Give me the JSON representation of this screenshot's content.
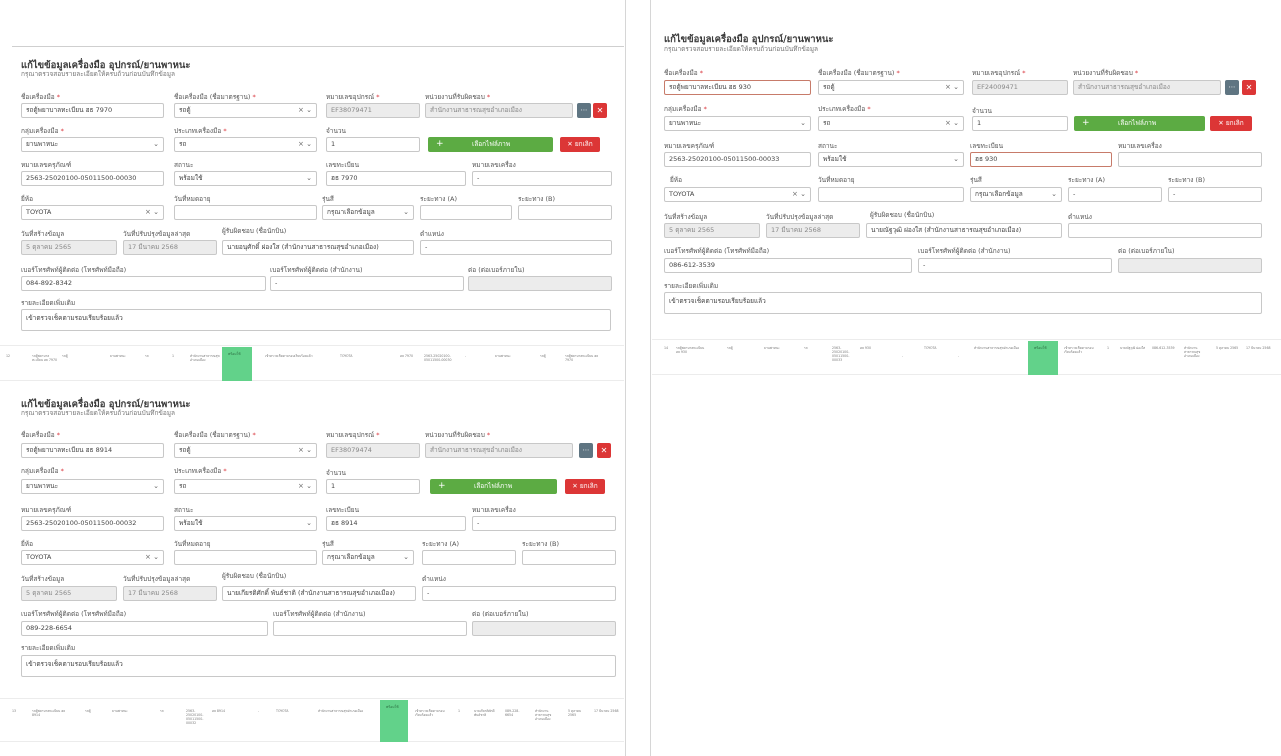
{
  "labels": {
    "title": "แก้ไขข้อมูลเครื่องมือ อุปกรณ์/ยานพาหนะ",
    "subtitle": "กรุณาตรวจสอบรายละเอียดให้ครบถ้วนก่อนบันทึกข้อมูล",
    "name": "ชื่อเครื่องมือ",
    "std_name": "ชื่อเครื่องมือ (ชื่อมาตรฐาน)",
    "equip_no": "หมายเลขอุปกรณ์",
    "owner": "หน่วยงานที่รับผิดชอบ",
    "group": "กลุ่มเครื่องมือ",
    "type": "ประเภทเครื่องมือ",
    "qty": "จำนวน",
    "add_btn": "เลือกไฟล์ภาพ",
    "cancel_btn": "ยกเลิก",
    "asset_no": "หมายเลขครุภัณฑ์",
    "status": "สถานะ",
    "plate": "เลขทะเบียน",
    "engine": "หมายเลขเครื่อง",
    "brand": "ยี่ห้อ",
    "expire": "วันที่หมดอายุ",
    "model": "รุ่นสี",
    "mile_a": "ระยะทาง (A)",
    "mile_b": "ระยะทาง (B)",
    "created": "วันที่สร้างข้อมูล",
    "updated": "วันที่ปรับปรุงข้อมูลล่าสุด",
    "responsible": "ผู้รับผิดชอบ (ชื่อนักบิน)",
    "position": "ตำแหน่ง",
    "mobile": "เบอร์โทรศัพท์ผู้ติดต่อ (โทรศัพท์มือถือ)",
    "office_phone": "เบอร์โทรศัพท์ผู้ติดต่อ (สำนักงาน)",
    "ext": "ต่อ (ต่อเบอร์ภายใน)",
    "detail": "รายละเอียดเพิ่มเติม"
  },
  "forms": [
    {
      "name": "รถตู้พยาบาลทะเบียน ฮธ 7970",
      "std_name": "รถตู้",
      "equip_no": "EF38079471",
      "owner": "สำนักงานสาธารณสุขอำเภอเมือง",
      "group": "ยานพาหนะ",
      "type": "รถ",
      "qty": "1",
      "asset_no": "2563-25020100-05011500-00030",
      "status": "พร้อมใช้",
      "plate": "ฮธ 7970",
      "engine": "-",
      "brand": "TOYOTA",
      "expire": "",
      "model": "กรุณาเลือกข้อมูล",
      "mile_a": "",
      "mile_b": "",
      "created": "5 ตุลาคม 2565",
      "updated": "17 มีนาคม 2568",
      "responsible": "นายอนุศักดิ์ ผ่องใส (สำนักงานสาธารณสุขอำเภอเมือง)",
      "position": "-",
      "mobile": "084-892-8342",
      "office_phone": "-",
      "ext": "",
      "detail": "เข้าตรวจเช็คตามรอบเรียบร้อยแล้ว"
    },
    {
      "name": "รถตู้พยาบาลทะเบียน ฮธ 8914",
      "std_name": "รถตู้",
      "equip_no": "EF38079474",
      "owner": "สำนักงานสาธารณสุขอำเภอเมือง",
      "group": "ยานพาหนะ",
      "type": "รถ",
      "qty": "1",
      "asset_no": "2563-25020100-05011500-00032",
      "status": "พร้อมใช้",
      "plate": "ฮธ 8914",
      "engine": "-",
      "brand": "TOYOTA",
      "expire": "",
      "model": "กรุณาเลือกข้อมูล",
      "mile_a": "",
      "mile_b": "",
      "created": "5 ตุลาคม 2565",
      "updated": "17 มีนาคม 2568",
      "responsible": "นายเกียรติศักดิ์ พันธ์ชาติ (สำนักงานสาธารณสุขอำเภอเมือง)",
      "position": "-",
      "mobile": "089-228-6654",
      "office_phone": "",
      "ext": "",
      "detail": "เข้าตรวจเช็คตามรอบเรียบร้อยแล้ว"
    },
    {
      "name": "รถตู้พยาบาลทะเบียน ฮธ 930",
      "std_name": "รถตู้",
      "equip_no": "EF24009471",
      "owner": "สำนักงานสาธารณสุขอำเภอเมือง",
      "group": "ยานพาหนะ",
      "type": "รถ",
      "qty": "1",
      "asset_no": "2563-25020100-05011500-00033",
      "status": "พร้อมใช้",
      "plate": "ฮธ 930",
      "engine": "",
      "brand": "TOYOTA",
      "expire": "",
      "model": "กรุณาเลือกข้อมูล",
      "mile_a": "-",
      "mile_b": "-",
      "created": "5 ตุลาคม 2565",
      "updated": "17 มีนาคม 2568",
      "responsible": "นายณัฐวุฒิ ผ่องใส (สำนักงานสาธารณสุขอำเภอเมือง)",
      "position": "",
      "mobile": "086-612-3539",
      "office_phone": "-",
      "ext": "",
      "detail": "เข้าตรวจเช็คตามรอบเรียบร้อยแล้ว"
    }
  ],
  "tables": [
    {
      "cells": [
        "12",
        "รถตู้พยาบาลทะเบียน ฮธ 7970",
        "รถตู้",
        "ยานพาหนะ",
        "รถ",
        "2563-25020100-05011500-00030",
        "ฮธ 7970",
        "-",
        "TOYOTA",
        "-",
        "สำนักงานสาธารณสุขอำเภอเมือง",
        "พร้อมใช้",
        "เข้าตรวจเช็คตามรอบเรียบร้อยแล้ว",
        "1",
        "นายอนุศักดิ์ ผ่องใส",
        "084-892-8342",
        "สำนักงานสาธารณสุขอำเภอเมือง",
        "5 ตุลาคม 2565",
        "17 มีนาคม 2568"
      ],
      "status_label": "พร้อมใช้"
    },
    {
      "cells": [
        "13",
        "รถตู้พยาบาลทะเบียน ฮธ 8914",
        "รถตู้",
        "ยานพาหนะ",
        "รถ",
        "2563-25020100-05011500-00032",
        "ฮธ 8914",
        "-",
        "TOYOTA",
        "-",
        "สำนักงานสาธารณสุขอำเภอเมือง",
        "พร้อมใช้",
        "เข้าตรวจเช็คตามรอบเรียบร้อยแล้ว",
        "1",
        "นายเกียรติศักดิ์ พันธ์ชาติ",
        "089-228-6654",
        "สำนักงานสาธารณสุขอำเภอเมือง",
        "5 ตุลาคม 2565",
        "17 มีนาคม 2568"
      ],
      "status_label": "พร้อมใช้"
    },
    {
      "cells": [
        "14",
        "รถตู้พยาบาลทะเบียน ฮธ 930",
        "รถตู้",
        "ยานพาหนะ",
        "รถ",
        "2563-25020100-05011500-00033",
        "ฮธ 930",
        "-",
        "TOYOTA",
        "-",
        "สำนักงานสาธารณสุขอำเภอเมือง",
        "พร้อมใช้",
        "เข้าตรวจเช็คตามรอบเรียบร้อยแล้ว",
        "1",
        "นายณัฐวุฒิ ผ่องใส",
        "086-612-3539",
        "สำนักงานสาธารณสุขอำเภอเมือง",
        "5 ตุลาคม 2565",
        "17 มีนาคม 2568"
      ],
      "status_label": "พร้อมใช้"
    }
  ],
  "icons": {
    "clear": "×",
    "chevron": "⌄",
    "more": "⋯",
    "close": "✕",
    "plus": "+"
  },
  "colors": {
    "accent_green": "#5cab43",
    "danger_red": "#dc3636",
    "status_green": "#62d28a"
  }
}
